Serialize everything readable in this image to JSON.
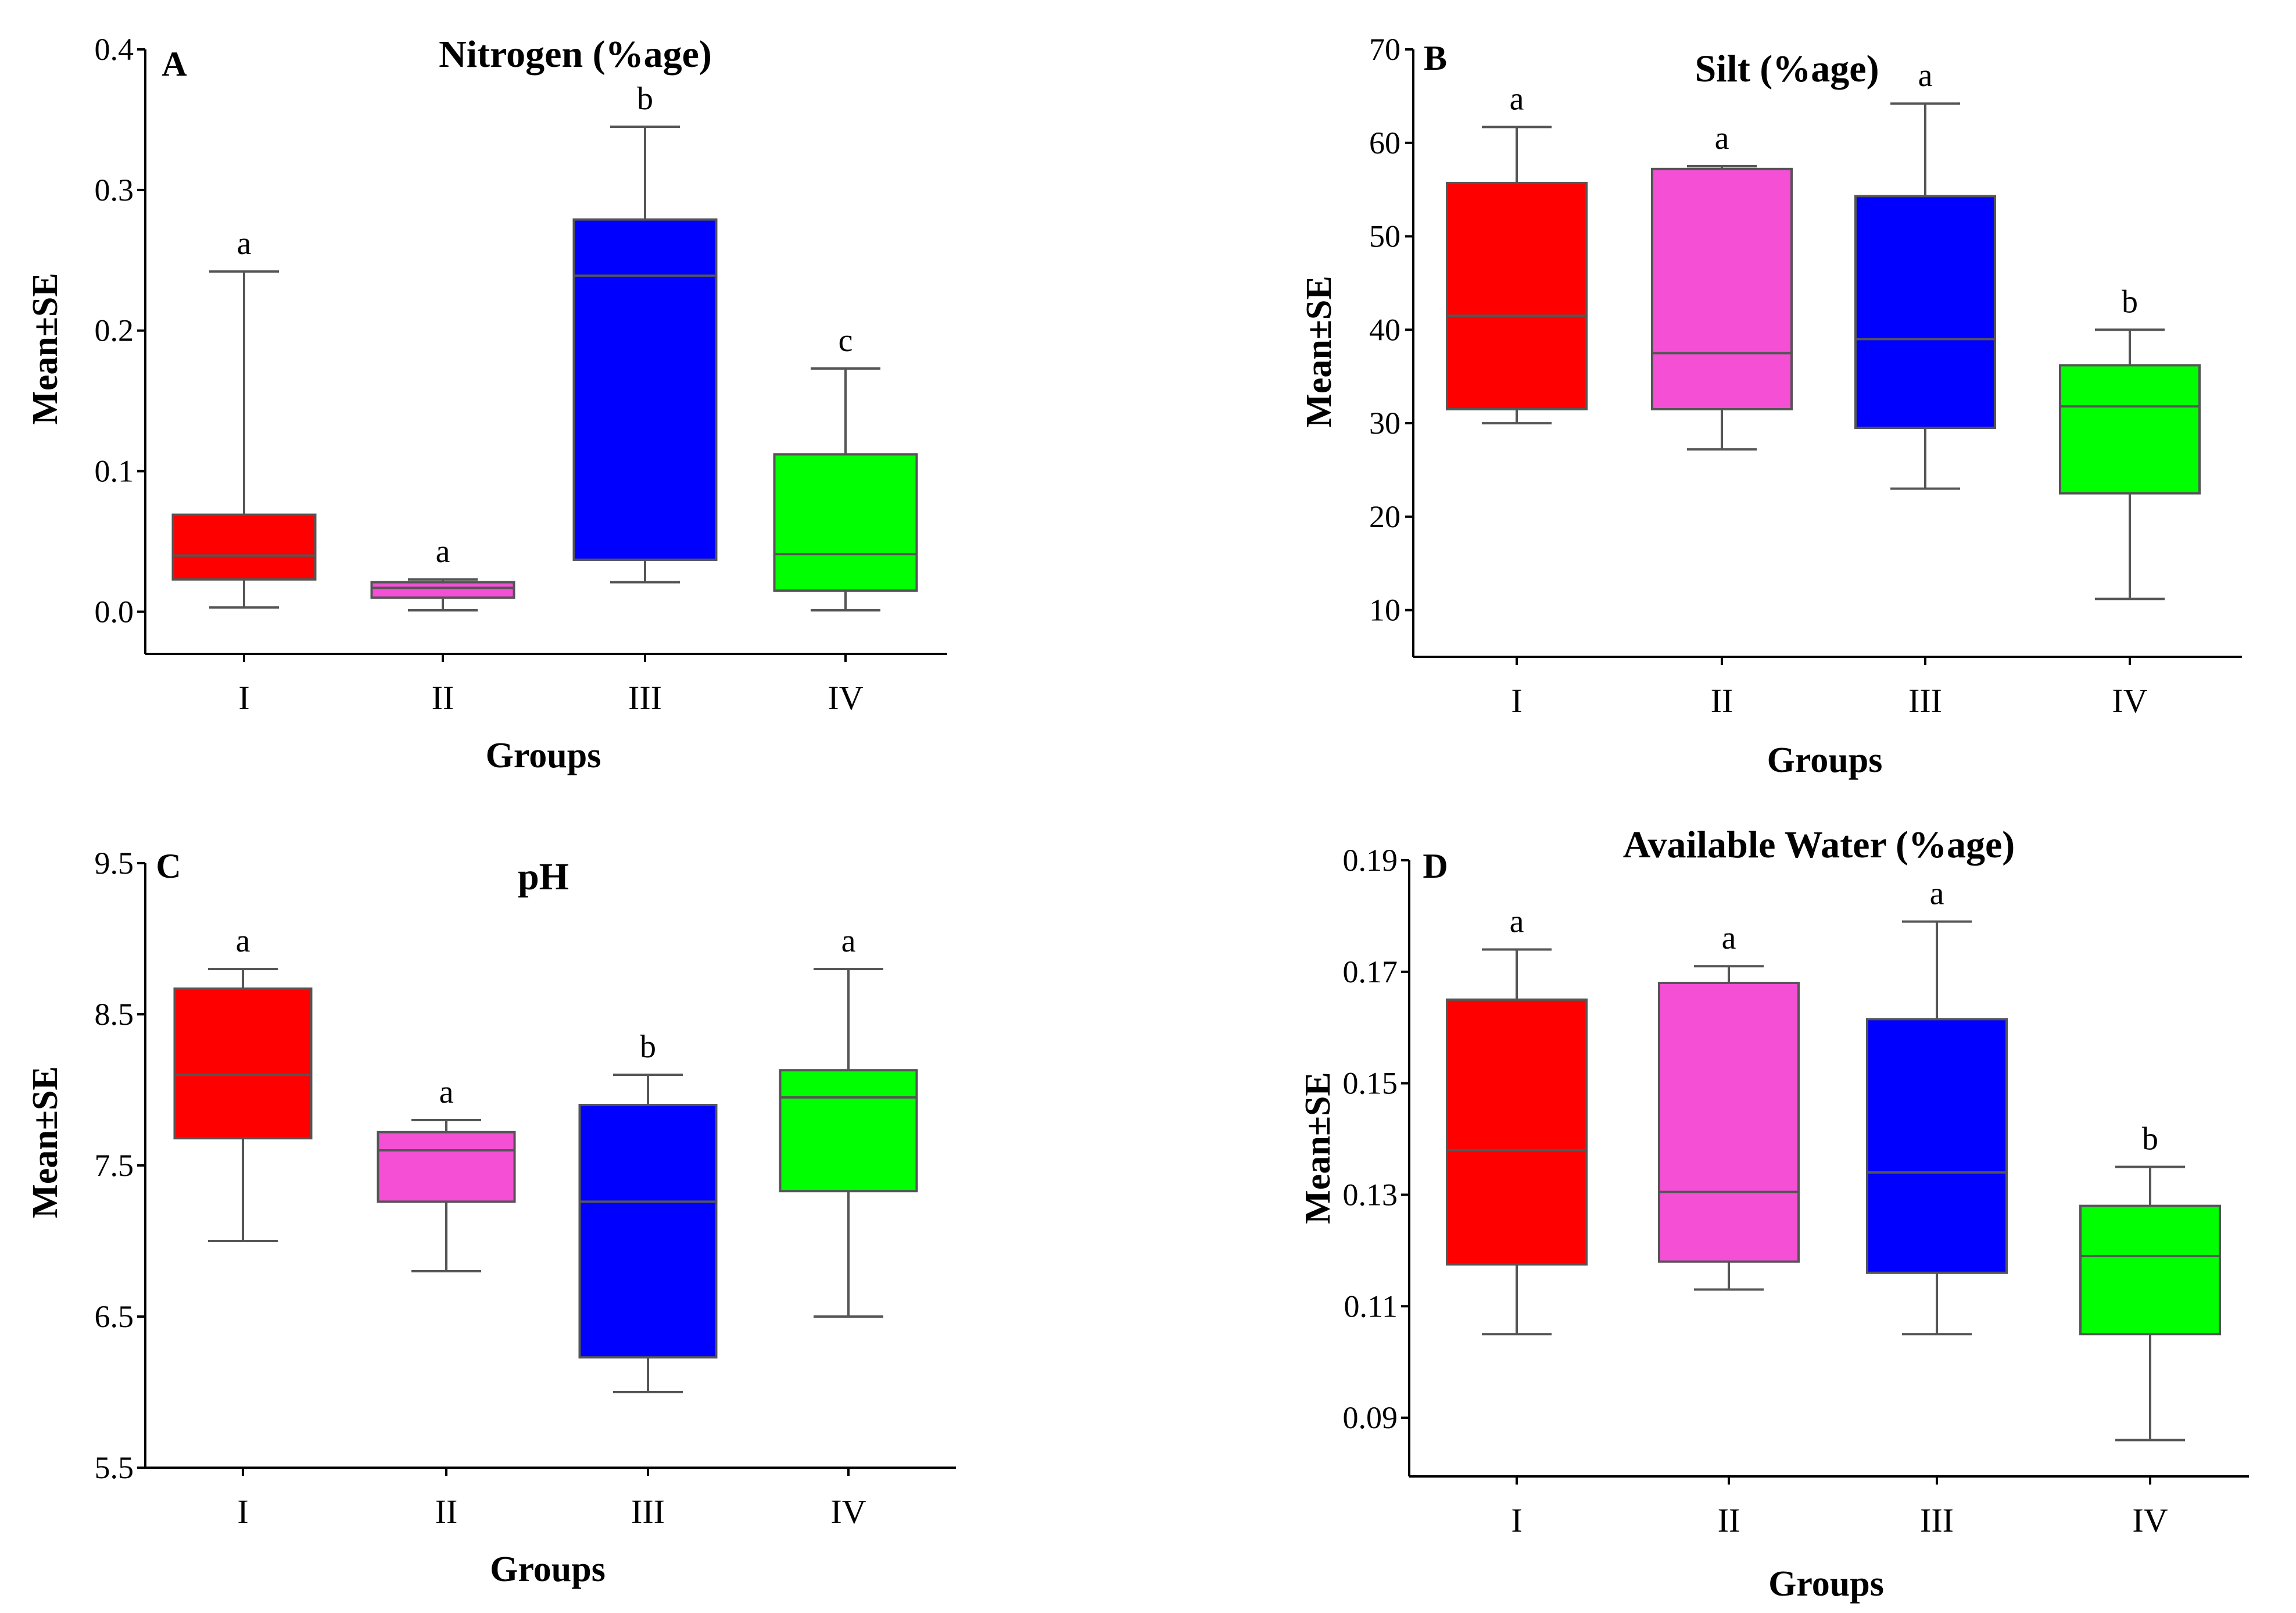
{
  "chart_data": [
    {
      "type": "box",
      "panel": "A",
      "title": "Nitrogen (%age)",
      "xlabel": "Groups",
      "ylabel": "Mean±SE",
      "ylim": [
        -0.03,
        0.4
      ],
      "yticks": [
        0.0,
        0.1,
        0.2,
        0.3,
        0.4
      ],
      "ytick_labels": [
        "0.0",
        "0.1",
        "0.2",
        "0.3",
        "0.4"
      ],
      "categories": [
        "I",
        "II",
        "III",
        "IV"
      ],
      "colors": [
        "#ff0000",
        "#f54fd6",
        "#0000ff",
        "#00ff00"
      ],
      "boxes": [
        {
          "min": 0.003,
          "q1": 0.023,
          "median": 0.04,
          "q3": 0.069,
          "max": 0.242,
          "letter": "a"
        },
        {
          "min": 0.001,
          "q1": 0.01,
          "median": 0.017,
          "q3": 0.021,
          "max": 0.023,
          "letter": "a"
        },
        {
          "min": 0.021,
          "q1": 0.037,
          "median": 0.239,
          "q3": 0.279,
          "max": 0.345,
          "letter": "b"
        },
        {
          "min": 0.001,
          "q1": 0.015,
          "median": 0.041,
          "q3": 0.112,
          "max": 0.173,
          "letter": "c"
        }
      ]
    },
    {
      "type": "box",
      "panel": "B",
      "title": "Silt (%age)",
      "xlabel": "Groups",
      "ylabel": "Mean±SE",
      "ylim": [
        5,
        70
      ],
      "yticks": [
        10,
        20,
        30,
        40,
        50,
        60,
        70
      ],
      "ytick_labels": [
        "10",
        "20",
        "30",
        "40",
        "50",
        "60",
        "70"
      ],
      "categories": [
        "I",
        "II",
        "III",
        "IV"
      ],
      "colors": [
        "#ff0000",
        "#f54fd6",
        "#0000ff",
        "#00ff00"
      ],
      "boxes": [
        {
          "min": 30,
          "q1": 31.5,
          "median": 41.5,
          "q3": 55.7,
          "max": 61.7,
          "letter": "a"
        },
        {
          "min": 27.2,
          "q1": 31.5,
          "median": 37.5,
          "q3": 57.2,
          "max": 57.5,
          "letter": "a"
        },
        {
          "min": 23,
          "q1": 29.5,
          "median": 39,
          "q3": 54.3,
          "max": 64.2,
          "letter": "a"
        },
        {
          "min": 11.2,
          "q1": 22.5,
          "median": 31.8,
          "q3": 36.2,
          "max": 40,
          "letter": "b"
        }
      ]
    },
    {
      "type": "box",
      "panel": "C",
      "title": "pH",
      "xlabel": "Groups",
      "ylabel": "Mean±SE",
      "ylim": [
        5.5,
        9.5
      ],
      "yticks": [
        5.5,
        6.5,
        7.5,
        8.5,
        9.5
      ],
      "ytick_labels": [
        "5.5",
        "6.5",
        "7.5",
        "8.5",
        "9.5"
      ],
      "categories": [
        "I",
        "II",
        "III",
        "IV"
      ],
      "colors": [
        "#ff0000",
        "#f54fd6",
        "#0000ff",
        "#00ff00"
      ],
      "boxes": [
        {
          "min": 7.0,
          "q1": 7.68,
          "median": 8.1,
          "q3": 8.67,
          "max": 8.8,
          "letter": "a"
        },
        {
          "min": 6.8,
          "q1": 7.26,
          "median": 7.6,
          "q3": 7.72,
          "max": 7.8,
          "letter": "a"
        },
        {
          "min": 6.0,
          "q1": 6.23,
          "median": 7.26,
          "q3": 7.9,
          "max": 8.1,
          "letter": "b"
        },
        {
          "min": 6.5,
          "q1": 7.33,
          "median": 7.95,
          "q3": 8.13,
          "max": 8.8,
          "letter": "a"
        }
      ]
    },
    {
      "type": "box",
      "panel": "D",
      "title": "Available Water (%age)",
      "xlabel": "Groups",
      "ylabel": "Mean±SE",
      "ylim": [
        0.08,
        0.19
      ],
      "yticks": [
        0.09,
        0.11,
        0.13,
        0.15,
        0.17,
        0.19
      ],
      "ytick_labels": [
        "0.09",
        "0.11",
        "0.13",
        "0.15",
        "0.17",
        "0.19"
      ],
      "categories": [
        "I",
        "II",
        "III",
        "IV"
      ],
      "colors": [
        "#ff0000",
        "#f54fd6",
        "#0000ff",
        "#00ff00"
      ],
      "boxes": [
        {
          "min": 0.105,
          "q1": 0.1175,
          "median": 0.138,
          "q3": 0.165,
          "max": 0.174,
          "letter": "a"
        },
        {
          "min": 0.113,
          "q1": 0.118,
          "median": 0.1305,
          "q3": 0.168,
          "max": 0.171,
          "letter": "a"
        },
        {
          "min": 0.105,
          "q1": 0.116,
          "median": 0.134,
          "q3": 0.1615,
          "max": 0.179,
          "letter": "a"
        },
        {
          "min": 0.086,
          "q1": 0.105,
          "median": 0.119,
          "q3": 0.128,
          "max": 0.135,
          "letter": "b"
        }
      ]
    }
  ]
}
